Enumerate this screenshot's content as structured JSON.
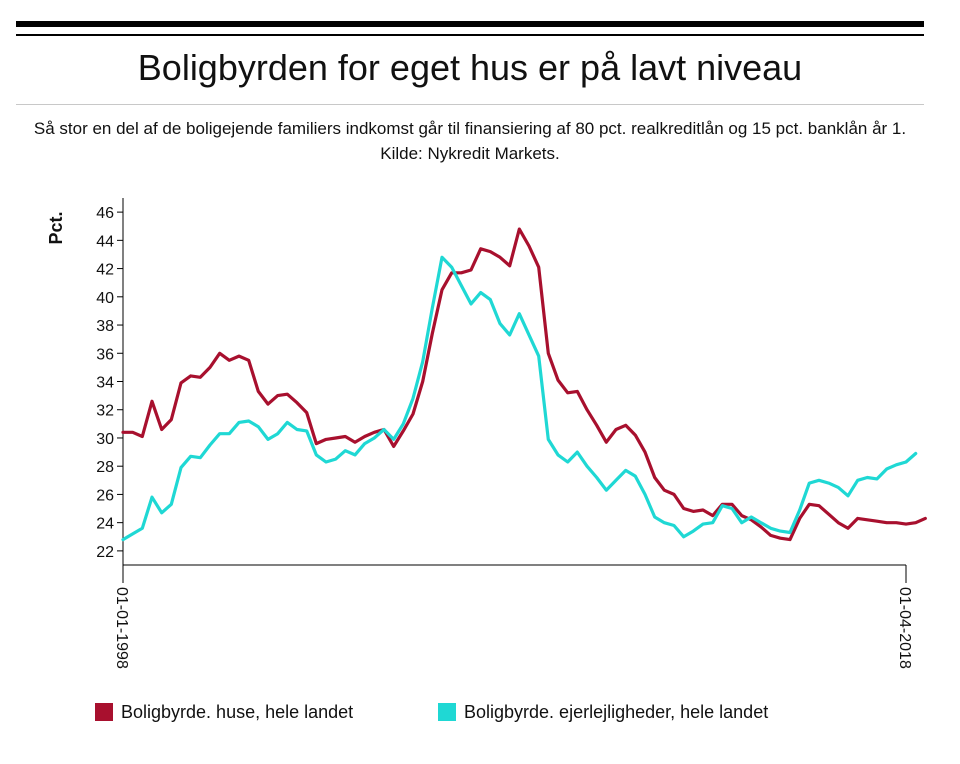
{
  "title": "Boligbyrden for eget hus er på lavt niveau",
  "subtitle": "Så stor en del af de boligejende familiers indkomst går til finansiering af 80 pct. realkreditlån og 15 pct. banklån år 1. Kilde: Nykredit Markets.",
  "chart_data": {
    "type": "line",
    "ylabel": "Pct.",
    "xlabel": "",
    "ylim": [
      21,
      47
    ],
    "yticks": [
      22,
      24,
      26,
      28,
      30,
      32,
      34,
      36,
      38,
      40,
      42,
      44,
      46
    ],
    "xlim": [
      1998.0,
      2018.25
    ],
    "xticks": [
      {
        "x": 1998.0,
        "label": "01-01-1998"
      },
      {
        "x": 2018.25,
        "label": "01-04-2018"
      }
    ],
    "grid": false,
    "legend": "bottom",
    "series": [
      {
        "name": "Boligbyrde. huse, hele landet",
        "color": "#a8102e",
        "values": [
          30.4,
          30.4,
          30.1,
          32.6,
          30.6,
          31.3,
          33.9,
          34.4,
          34.3,
          35.0,
          36.0,
          35.5,
          35.8,
          35.5,
          33.3,
          32.4,
          33.0,
          33.1,
          32.5,
          31.8,
          29.6,
          29.9,
          30.0,
          30.1,
          29.7,
          30.1,
          30.4,
          30.6,
          29.4,
          30.5,
          31.7,
          34.0,
          37.4,
          40.5,
          41.7,
          41.7,
          41.9,
          43.4,
          43.2,
          42.8,
          42.2,
          44.8,
          43.6,
          42.1,
          36.0,
          34.1,
          33.2,
          33.3,
          32.0,
          30.9,
          29.7,
          30.6,
          30.9,
          30.2,
          29.0,
          27.2,
          26.3,
          26.0,
          25.0,
          24.8,
          24.9,
          24.5,
          25.3,
          25.3,
          24.5,
          24.2,
          23.7,
          23.1,
          22.9,
          22.8,
          24.3,
          25.3,
          25.2,
          24.6,
          24.0,
          23.6,
          24.3,
          24.2,
          24.1,
          24.0,
          24.0,
          23.9,
          24.0,
          24.3
        ],
        "x_start": 1998.0,
        "x_step": 0.25
      },
      {
        "name": "Boligbyrde. ejerlejligheder, hele landet",
        "color": "#1fd8d4",
        "values": [
          22.8,
          23.2,
          23.6,
          25.8,
          24.7,
          25.3,
          27.9,
          28.7,
          28.6,
          29.5,
          30.3,
          30.3,
          31.1,
          31.2,
          30.8,
          29.9,
          30.3,
          31.1,
          30.6,
          30.5,
          28.8,
          28.3,
          28.5,
          29.1,
          28.8,
          29.6,
          30.0,
          30.6,
          29.9,
          31.0,
          32.8,
          35.4,
          39.2,
          42.8,
          42.1,
          40.8,
          39.5,
          40.3,
          39.8,
          38.1,
          37.3,
          38.8,
          37.3,
          35.8,
          29.9,
          28.8,
          28.3,
          29.0,
          28.0,
          27.2,
          26.3,
          27.0,
          27.7,
          27.3,
          26.0,
          24.4,
          24.0,
          23.8,
          23.0,
          23.4,
          23.9,
          24.0,
          25.2,
          25.0,
          24.0,
          24.4,
          24.0,
          23.6,
          23.4,
          23.3,
          24.9,
          26.8,
          27.0,
          26.8,
          26.5,
          25.9,
          27.0,
          27.2,
          27.1,
          27.8,
          28.1,
          28.3,
          28.9
        ],
        "x_start": 1998.0,
        "x_step": 0.25
      }
    ]
  }
}
